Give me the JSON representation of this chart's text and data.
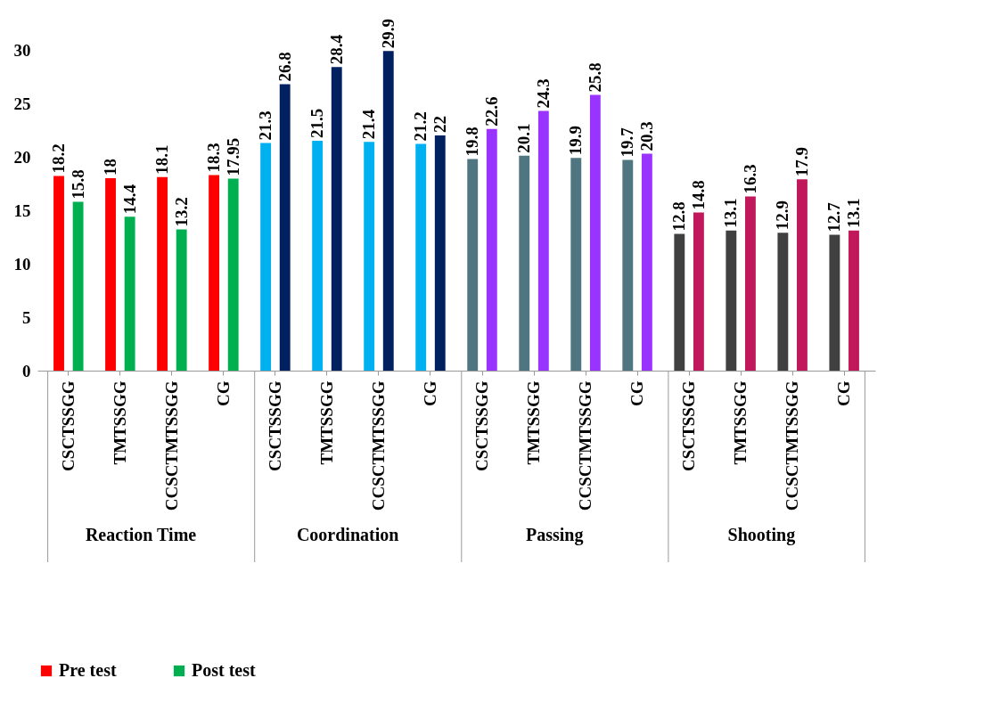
{
  "chart_data": {
    "type": "bar",
    "categories": [
      "CSCTSSGG",
      "TMTSSGG",
      "CCSCTMTSSGG",
      "CG",
      "CSCTSSGG",
      "TMTSSGG",
      "CCSCTMTSSGG",
      "CG",
      "CSCTSSGG",
      "TMTSSGG",
      "CCSCTMTSSGG",
      "CG",
      "CSCTSSGG",
      "TMTSSGG",
      "CCSCTMTSSGG",
      "CG"
    ],
    "series": [
      {
        "name": "Pre test",
        "colors": [
          "#ff0000",
          "#ff0000",
          "#ff0000",
          "#ff0000",
          "#00b0f0",
          "#00b0f0",
          "#00b0f0",
          "#00b0f0",
          "#4f7580",
          "#4f7580",
          "#4f7580",
          "#4f7580",
          "#404040",
          "#404040",
          "#404040",
          "#404040"
        ],
        "values": [
          18.2,
          18,
          18.1,
          18.3,
          21.3,
          21.5,
          21.4,
          21.2,
          19.8,
          20.1,
          19.9,
          19.7,
          12.8,
          13.1,
          12.9,
          12.7
        ]
      },
      {
        "name": "Post test",
        "colors": [
          "#00b050",
          "#00b050",
          "#00b050",
          "#00b050",
          "#002060",
          "#002060",
          "#002060",
          "#002060",
          "#9933ff",
          "#9933ff",
          "#9933ff",
          "#9933ff",
          "#c0185a",
          "#c0185a",
          "#c0185a",
          "#c0185a"
        ],
        "values": [
          15.8,
          14.4,
          13.2,
          17.95,
          26.8,
          28.4,
          29.9,
          22,
          22.6,
          24.3,
          25.8,
          20.3,
          14.8,
          16.3,
          17.9,
          13.1
        ]
      }
    ],
    "annotations": [
      "Reaction Time",
      "Coordination",
      "Passing",
      "Shooting"
    ],
    "ylim": [
      0,
      30
    ],
    "yticks": [
      0,
      5,
      10,
      15,
      20,
      25,
      30
    ],
    "data_labels": true,
    "legend": "bottom"
  }
}
